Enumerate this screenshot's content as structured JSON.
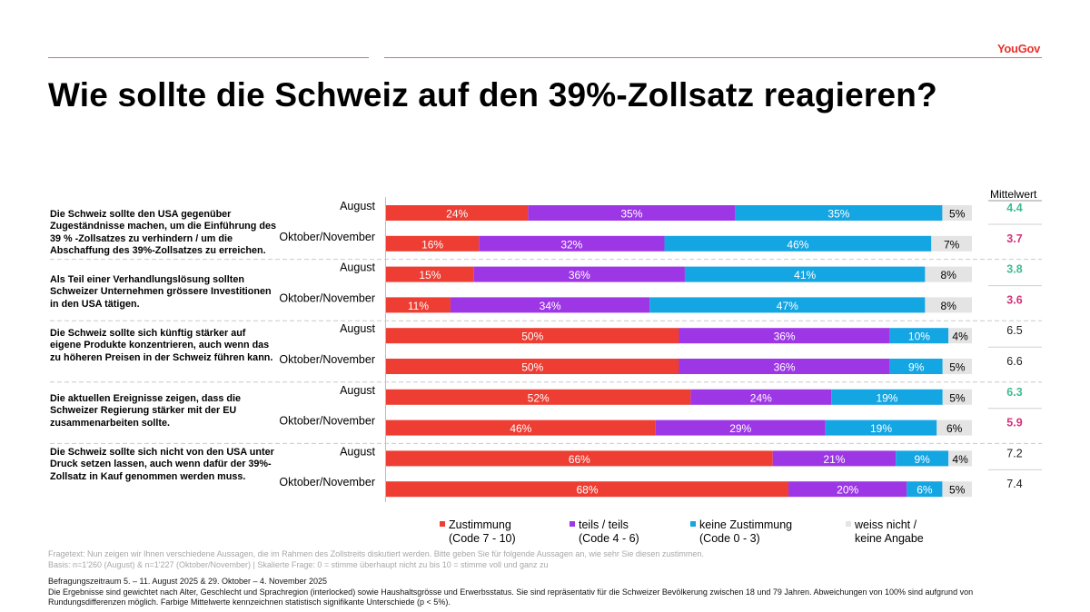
{
  "brand": "YouGov",
  "title": "Wie sollte die Schweiz auf den 39%-Zollsatz reagieren?",
  "mittelwert_header": "Mittelwert",
  "legend": [
    {
      "line1": "Zustimmung",
      "line2": "(Code 7 - 10)",
      "color": "#ee3d32"
    },
    {
      "line1": "teils / teils",
      "line2": "(Code 4 - 6)",
      "color": "#9d37e6"
    },
    {
      "line1": "keine Zustimmung",
      "line2": "(Code 0 - 3)",
      "color": "#14a5e3"
    },
    {
      "line1": "weiss nicht /",
      "line2": "keine Angabe",
      "color": "#e4e4e4"
    }
  ],
  "statements": [
    "Die Schweiz sollte den USA gegenüber Zugeständnisse machen, um die Einführung des 39 % -Zollsatzes zu verhindern / um die Abschaffung des 39%-Zollsatzes zu erreichen.",
    "Als Teil einer Verhandlungslösung sollten Schweizer Unternehmen grössere Investitionen in den USA tätigen.",
    "Die Schweiz sollte sich künftig stärker auf eigene Produkte konzentrieren, auch wenn das zu höheren Preisen in der Schweiz führen kann.",
    "Die aktuellen Ereignisse zeigen, dass die Schweizer Regierung stärker mit der EU zusammenarbeiten sollte.",
    "Die Schweiz sollte sich nicht von den USA unter Druck setzen lassen, auch wenn dafür der 39%-Zollsatz in Kauf genommen werden muss."
  ],
  "fragetext": "Fragetext: Nun zeigen wir Ihnen verschiedene Aussagen, die im Rahmen des Zollstreits diskutiert werden. Bitte geben Sie für folgende Aussagen an, wie sehr Sie diesen zustimmen.",
  "basis": "Basis: n=1'260 (August) & n=1'227 (Oktober/November) | Skalierte Frage: 0 = stimme überhaupt nicht zu bis 10 = stimme voll und ganz zu",
  "befragungszeitraum": "Befragungszeitraum 5. – 11. August 2025 & 29. Oktober – 4. November 2025",
  "note": "Die Ergebnisse sind gewichtet nach Alter, Geschlecht und Sprachregion (interlocked) sowie Haushaltsgrösse und Erwerbsstatus. Sie sind repräsentativ für die Schweizer Bevölkerung zwischen 18 und 79 Jahren. Abweichungen von 100% sind aufgrund von Rundungsdifferenzen möglich. Farbige Mittelwerte kennzeichnen statistisch signifikante Unterschiede (p < 5%).",
  "chart_data": {
    "type": "bar",
    "orientation": "horizontal",
    "stacked": true,
    "title": "Wie sollte die Schweiz auf den 39%-Zollsatz reagieren?",
    "categories": [
      "August",
      "Oktober/November",
      "August",
      "Oktober/November",
      "August",
      "Oktober/November",
      "August",
      "Oktober/November",
      "August",
      "Oktober/November"
    ],
    "series": [
      {
        "name": "Zustimmung (Code 7 - 10)",
        "color": "#ee3d32",
        "values": [
          24,
          16,
          15,
          11,
          50,
          50,
          52,
          46,
          66,
          68
        ]
      },
      {
        "name": "teils / teils (Code 4 - 6)",
        "color": "#9d37e6",
        "values": [
          35,
          32,
          36,
          34,
          36,
          36,
          24,
          29,
          21,
          20
        ]
      },
      {
        "name": "keine Zustimmung (Code 0 - 3)",
        "color": "#14a5e3",
        "values": [
          35,
          46,
          41,
          47,
          10,
          9,
          19,
          19,
          9,
          6
        ]
      },
      {
        "name": "weiss nicht / keine Angabe",
        "color": "#e4e4e4",
        "values": [
          5,
          7,
          8,
          8,
          4,
          5,
          5,
          6,
          4,
          5
        ]
      }
    ],
    "mittelwert": [
      {
        "value": "4.4",
        "color": "#3dbd8f"
      },
      {
        "value": "3.7",
        "color": "#d5317d"
      },
      {
        "value": "3.8",
        "color": "#3dbd8f"
      },
      {
        "value": "3.6",
        "color": "#d5317d"
      },
      {
        "value": "6.5",
        "color": "#222222"
      },
      {
        "value": "6.6",
        "color": "#222222"
      },
      {
        "value": "6.3",
        "color": "#3dbd8f"
      },
      {
        "value": "5.9",
        "color": "#d5317d"
      },
      {
        "value": "7.2",
        "color": "#222222"
      },
      {
        "value": "7.4",
        "color": "#222222"
      }
    ],
    "xlim": [
      0,
      100
    ],
    "legend_position": "bottom"
  }
}
